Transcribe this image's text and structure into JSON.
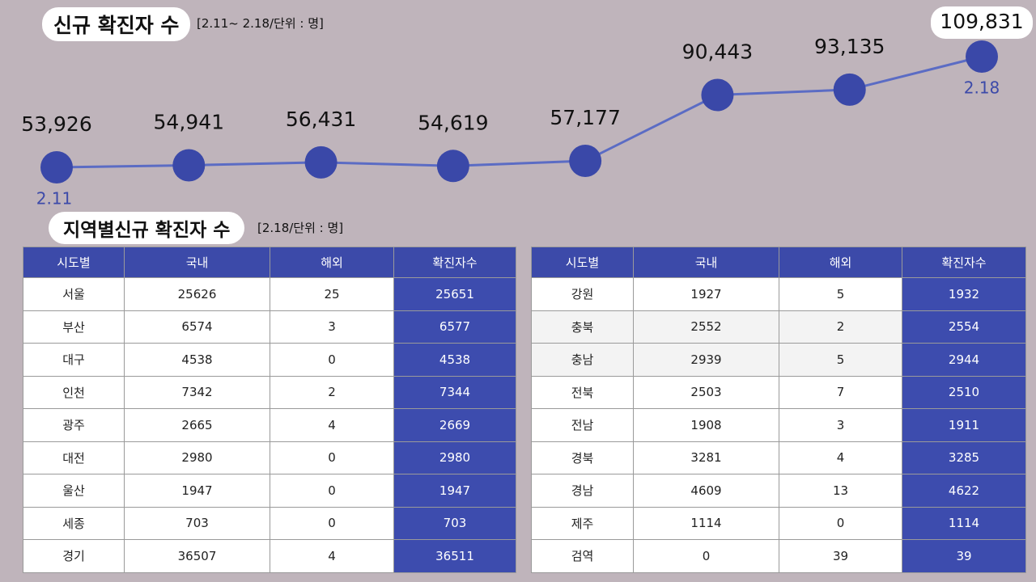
{
  "chart_data": {
    "type": "line",
    "title": "신규 확진자 수",
    "subtitle": "[2.11~ 2.18/단위 : 명]",
    "categories": [
      "2.11",
      null,
      null,
      null,
      null,
      null,
      null,
      "2.18"
    ],
    "values": [
      53926,
      54941,
      56431,
      54619,
      57177,
      90443,
      93135,
      109831
    ],
    "value_labels": [
      "53,926",
      "54,941",
      "56,431",
      "54,619",
      "57,177",
      "90,443",
      "93,135",
      "109,831"
    ],
    "color": "#5b6cc4",
    "marker_color": "#3a48a8"
  },
  "regional": {
    "title": "지역별신규 확진자 수",
    "subtitle": "[2.18/단위 : 명]",
    "tables": [
      {
        "header": [
          "시도별",
          "국내",
          "해외",
          "확진자수"
        ],
        "rows": [
          [
            "서울",
            25626,
            25,
            25651
          ],
          [
            "부산",
            6574,
            3,
            6577
          ],
          [
            "대구",
            4538,
            0,
            4538
          ],
          [
            "인천",
            7342,
            2,
            7344
          ],
          [
            "광주",
            2665,
            4,
            2669
          ],
          [
            "대전",
            2980,
            0,
            2980
          ],
          [
            "울산",
            1947,
            0,
            1947
          ],
          [
            "세종",
            703,
            0,
            703
          ],
          [
            "경기",
            36507,
            4,
            36511
          ]
        ]
      },
      {
        "header": [
          "시도별",
          "국내",
          "해외",
          "확진자수"
        ],
        "rows": [
          [
            "강원",
            1927,
            5,
            1932
          ],
          [
            "충북",
            2552,
            2,
            2554
          ],
          [
            "충남",
            2939,
            5,
            2944
          ],
          [
            "전북",
            2503,
            7,
            2510
          ],
          [
            "전남",
            1908,
            3,
            1911
          ],
          [
            "경북",
            3281,
            4,
            3285
          ],
          [
            "경남",
            4609,
            13,
            4622
          ],
          [
            "제주",
            1114,
            0,
            1114
          ],
          [
            "검역",
            0,
            39,
            39
          ]
        ]
      }
    ]
  }
}
